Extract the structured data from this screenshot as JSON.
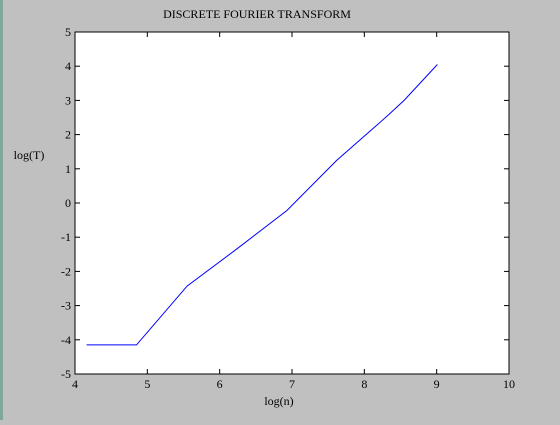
{
  "colors": {
    "background": "#c0c0c0",
    "plot_area": "#ffffff",
    "line": "#0000ff",
    "frame": "#000000"
  },
  "chart_data": {
    "type": "line",
    "title": "DISCRETE FOURIER TRANSFORM",
    "xlabel": "log(n)",
    "ylabel": "log(T)",
    "xlim": [
      4,
      10
    ],
    "ylim": [
      -5,
      5
    ],
    "xticks": [
      4,
      5,
      6,
      7,
      8,
      9,
      10
    ],
    "xtick_labels": [
      "4",
      "5",
      "6",
      "7",
      "8",
      "9",
      "10"
    ],
    "yticks": [
      5,
      4,
      3,
      2,
      1,
      0,
      -1,
      -2,
      -3,
      -4,
      -5
    ],
    "ytick_labels": [
      "5",
      "4",
      "3",
      "2",
      "1",
      "0",
      "-1",
      "-2",
      "-3",
      "-4",
      "-5"
    ],
    "grid": false,
    "series": [
      {
        "x": [
          4.16,
          4.85,
          5.55,
          6.24,
          6.93,
          7.62,
          8.32,
          8.55,
          9.01
        ],
        "y": [
          -4.15,
          -4.15,
          -2.43,
          -1.34,
          -0.22,
          1.25,
          2.55,
          3.0,
          4.05
        ]
      }
    ]
  }
}
